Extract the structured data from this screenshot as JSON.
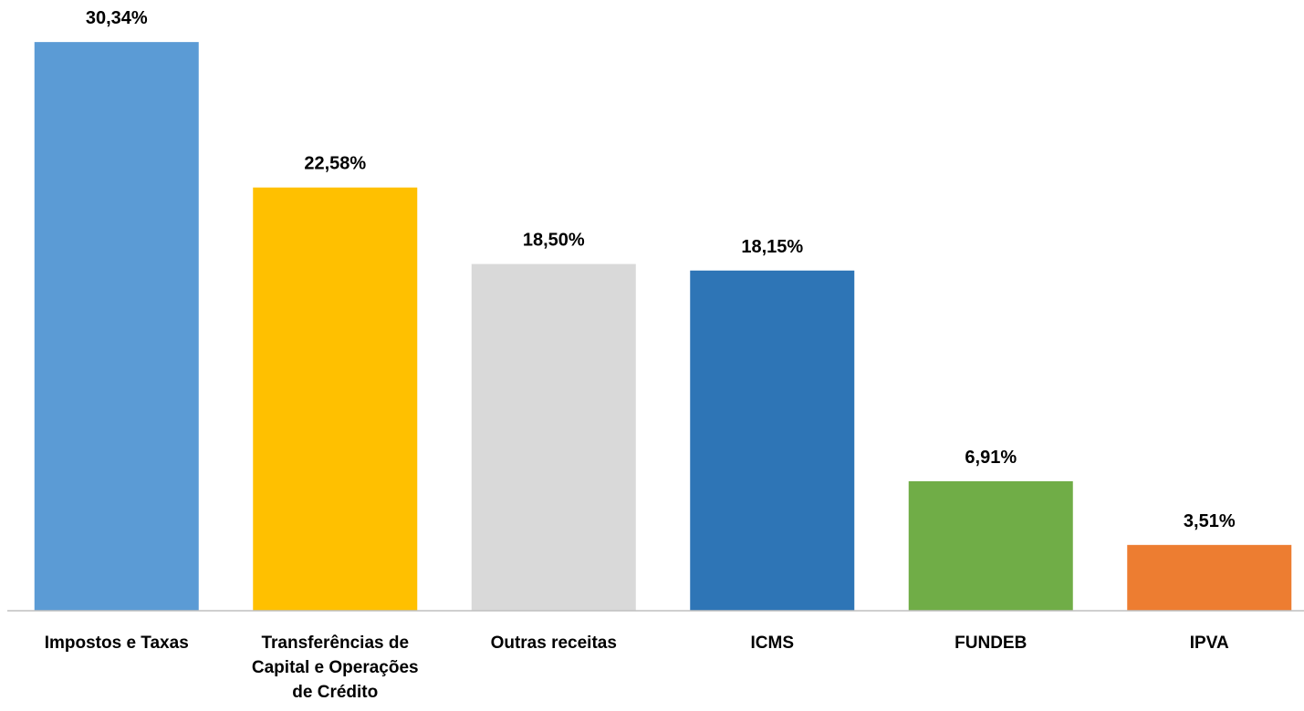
{
  "chart_data": {
    "type": "bar",
    "categories": [
      "Impostos e Taxas",
      "Transferências de Capital e Operações de Crédito",
      "Outras receitas",
      "ICMS",
      "FUNDEB",
      "IPVA"
    ],
    "values": [
      30.34,
      22.58,
      18.5,
      18.15,
      6.91,
      3.51
    ],
    "value_labels": [
      "30,34%",
      "22,58%",
      "18,50%",
      "18,15%",
      "6,91%",
      "3,51%"
    ],
    "colors": [
      "#5b9bd5",
      "#ffc000",
      "#d9d9d9",
      "#2e75b6",
      "#70ad47",
      "#ed7d31"
    ],
    "ylim": [
      0,
      32
    ]
  }
}
